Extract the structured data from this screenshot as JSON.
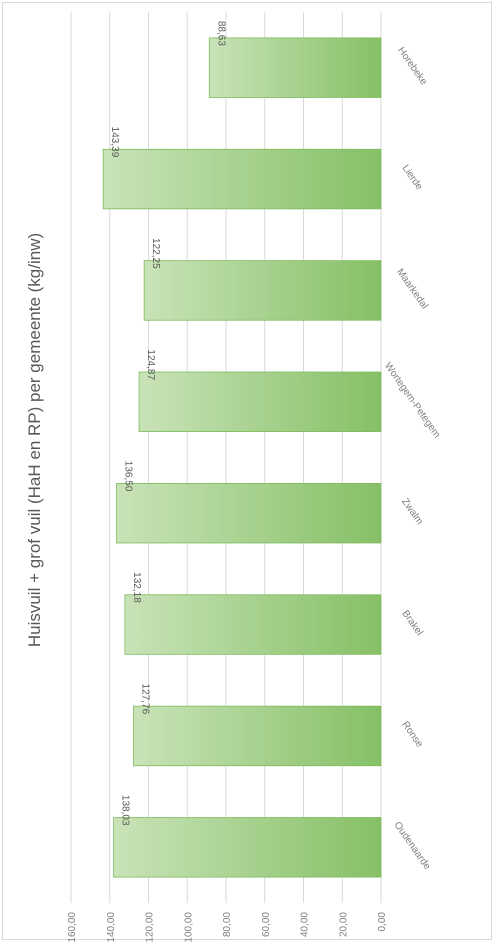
{
  "chart_data": {
    "type": "bar",
    "orientation": "rotated-90-clockwise",
    "title": "Huisvuil + grof vuil (HaH en RP) per gemeente (kg/inw)",
    "categories": [
      "Oudenaarde",
      "Ronse",
      "Brakel",
      "Zwalm",
      "Wortegem-Petegem",
      "Maarkedal",
      "Lierde",
      "Horebeke"
    ],
    "values": [
      138.03,
      127.76,
      132.18,
      136.5,
      124.87,
      122.25,
      143.39,
      88.63
    ],
    "data_labels": [
      "138,03",
      "127,76",
      "132,18",
      "136,50",
      "124,87",
      "122,25",
      "143,39",
      "88,63"
    ],
    "ylim": [
      0,
      160
    ],
    "y_ticks": [
      "0,00",
      "20,00",
      "40,00",
      "60,00",
      "80,00",
      "100,00",
      "120,00",
      "140,00",
      "160,00"
    ],
    "grid": true,
    "bar_color_light": "#c9e3b8",
    "bar_color_dark": "#86c066",
    "bar_border": "#7dbb5c",
    "legend": "none"
  }
}
